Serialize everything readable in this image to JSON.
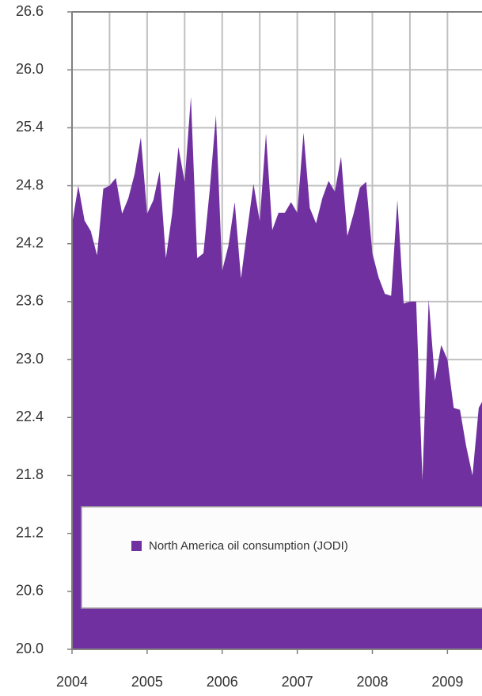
{
  "chart_data": {
    "type": "area",
    "series": [
      {
        "name": "North America oil consumption (JODI)",
        "color": "#7030a0",
        "values": [
          24.4,
          24.8,
          24.44,
          24.33,
          24.08,
          24.77,
          24.8,
          24.88,
          24.51,
          24.67,
          24.92,
          25.3,
          24.51,
          24.65,
          24.95,
          24.05,
          24.51,
          25.2,
          24.84,
          25.72,
          24.05,
          24.1,
          24.75,
          25.53,
          23.92,
          24.18,
          24.63,
          23.84,
          24.34,
          24.82,
          24.43,
          25.34,
          24.34,
          24.52,
          24.52,
          24.63,
          24.52,
          25.35,
          24.57,
          24.41,
          24.67,
          24.85,
          24.74,
          25.1,
          24.28,
          24.51,
          24.78,
          24.84,
          24.1,
          23.85,
          23.68,
          23.66,
          24.65,
          23.58,
          23.6,
          23.6,
          21.75,
          23.62,
          22.78,
          23.15,
          23.0,
          22.5,
          22.48,
          22.1,
          21.8,
          22.5,
          22.62
        ]
      }
    ],
    "x": [
      2004,
      2004.0833,
      2004.1667,
      2004.25,
      2004.3333,
      2004.4167,
      2004.5,
      2004.5833,
      2004.6667,
      2004.75,
      2004.8333,
      2004.9167,
      2005,
      2005.0833,
      2005.1667,
      2005.25,
      2005.3333,
      2005.4167,
      2005.5,
      2005.5833,
      2005.6667,
      2005.75,
      2005.8333,
      2005.9167,
      2006,
      2006.0833,
      2006.1667,
      2006.25,
      2006.3333,
      2006.4167,
      2006.5,
      2006.5833,
      2006.6667,
      2006.75,
      2006.8333,
      2006.9167,
      2007,
      2007.0833,
      2007.1667,
      2007.25,
      2007.3333,
      2007.4167,
      2007.5,
      2007.5833,
      2007.6667,
      2007.75,
      2007.8333,
      2007.9167,
      2008,
      2008.0833,
      2008.1667,
      2008.25,
      2008.3333,
      2008.4167,
      2008.5,
      2008.5833,
      2008.6667,
      2008.75,
      2008.8333,
      2008.9167,
      2009,
      2009.0833,
      2009.1667,
      2009.25,
      2009.3333,
      2009.4167,
      2009.5
    ],
    "xlim": [
      2004,
      2009.46
    ],
    "xticks": [
      2004,
      2005,
      2006,
      2007,
      2008,
      2009
    ],
    "ylim": [
      20,
      26.6
    ],
    "yticks": [
      {
        "value": 20,
        "label": "20.0"
      },
      20.6,
      21.2,
      21.8,
      22.4,
      {
        "value": 23,
        "label": "23.0"
      },
      23.6,
      24.2,
      24.8,
      25.4,
      {
        "value": 26,
        "label": "26.0"
      },
      26.6
    ],
    "grid": true,
    "legend": "lower center"
  }
}
